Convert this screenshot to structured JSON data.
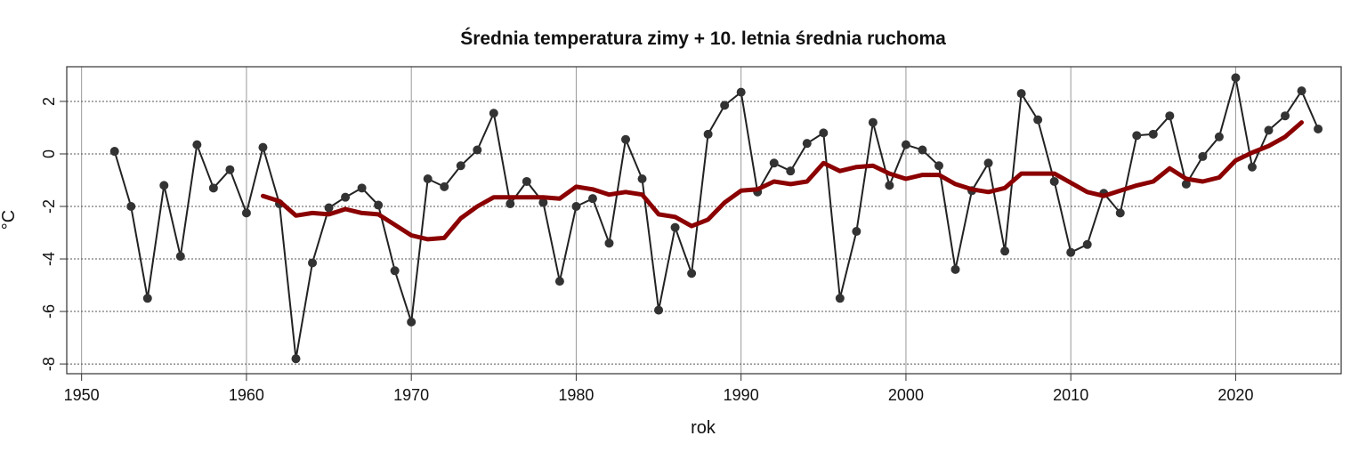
{
  "chart_data": {
    "type": "line",
    "title": "Średnia temperatura zimy + 10. letnia średnia ruchoma",
    "xlabel": "rok",
    "ylabel": "°C",
    "xlim": [
      1949.1,
      2026.4
    ],
    "ylim": [
      -8.37,
      3.32
    ],
    "xticks": [
      1950,
      1960,
      1970,
      1980,
      1990,
      2000,
      2010,
      2020
    ],
    "yticks": [
      -8,
      -6,
      -4,
      -2,
      0,
      2
    ],
    "grid": true,
    "legend": "none",
    "series": [
      {
        "name": "Średnia temperatura zimy",
        "color": "#222222",
        "markers": true,
        "x": [
          1952,
          1953,
          1954,
          1955,
          1956,
          1957,
          1958,
          1959,
          1960,
          1961,
          1962,
          1963,
          1964,
          1965,
          1966,
          1967,
          1968,
          1969,
          1970,
          1971,
          1972,
          1973,
          1974,
          1975,
          1976,
          1977,
          1978,
          1979,
          1980,
          1981,
          1982,
          1983,
          1984,
          1985,
          1986,
          1987,
          1988,
          1989,
          1990,
          1991,
          1992,
          1993,
          1994,
          1995,
          1996,
          1997,
          1998,
          1999,
          2000,
          2001,
          2002,
          2003,
          2004,
          2005,
          2006,
          2007,
          2008,
          2009,
          2010,
          2011,
          2012,
          2013,
          2014,
          2015,
          2016,
          2017,
          2018,
          2019,
          2020,
          2021,
          2022,
          2023,
          2024,
          2025
        ],
        "y": [
          0.1,
          -2.0,
          -5.5,
          -1.2,
          -3.9,
          0.35,
          -1.3,
          -0.6,
          -2.25,
          0.25,
          -1.9,
          -7.8,
          -4.15,
          -2.05,
          -1.65,
          -1.3,
          -1.95,
          -4.45,
          -6.4,
          -0.95,
          -1.25,
          -0.45,
          0.15,
          1.55,
          -1.9,
          -1.05,
          -1.85,
          -4.85,
          -2.0,
          -1.7,
          -3.4,
          0.55,
          -0.95,
          -5.95,
          -2.8,
          -4.55,
          0.75,
          1.85,
          2.35,
          -1.45,
          -0.35,
          -0.65,
          0.4,
          0.8,
          -5.5,
          -2.95,
          1.2,
          -1.2,
          0.35,
          0.15,
          -0.45,
          -4.4,
          -1.4,
          -0.35,
          -3.7,
          2.3,
          1.3,
          -1.05,
          -3.75,
          -3.45,
          -1.5,
          -2.25,
          0.7,
          0.75,
          1.45,
          -1.15,
          -0.1,
          0.65,
          2.9,
          -0.5,
          0.9,
          1.45,
          2.4,
          0.95
        ]
      },
      {
        "name": "10. letnia średnia ruchoma",
        "color": "#8b0000",
        "markers": false,
        "x": [
          1961,
          1962,
          1963,
          1964,
          1965,
          1966,
          1967,
          1968,
          1969,
          1970,
          1971,
          1972,
          1973,
          1974,
          1975,
          1976,
          1977,
          1978,
          1979,
          1980,
          1981,
          1982,
          1983,
          1984,
          1985,
          1986,
          1987,
          1988,
          1989,
          1990,
          1991,
          1992,
          1993,
          1994,
          1995,
          1996,
          1997,
          1998,
          1999,
          2000,
          2001,
          2002,
          2003,
          2004,
          2005,
          2006,
          2007,
          2008,
          2009,
          2010,
          2011,
          2012,
          2013,
          2014,
          2015,
          2016,
          2017,
          2018,
          2019,
          2020,
          2021,
          2022,
          2023,
          2024
        ],
        "y": [
          -1.6,
          -1.8,
          -2.35,
          -2.25,
          -2.3,
          -2.1,
          -2.25,
          -2.3,
          -2.7,
          -3.1,
          -3.25,
          -3.2,
          -2.45,
          -2.0,
          -1.65,
          -1.65,
          -1.65,
          -1.65,
          -1.7,
          -1.25,
          -1.35,
          -1.55,
          -1.45,
          -1.55,
          -2.3,
          -2.4,
          -2.75,
          -2.5,
          -1.85,
          -1.4,
          -1.35,
          -1.05,
          -1.15,
          -1.05,
          -0.35,
          -0.65,
          -0.5,
          -0.45,
          -0.75,
          -0.95,
          -0.8,
          -0.8,
          -1.15,
          -1.35,
          -1.45,
          -1.3,
          -0.75,
          -0.75,
          -0.75,
          -1.1,
          -1.45,
          -1.6,
          -1.4,
          -1.2,
          -1.05,
          -0.55,
          -0.95,
          -1.05,
          -0.9,
          -0.25,
          0.05,
          0.3,
          0.65,
          1.2
        ]
      }
    ]
  }
}
